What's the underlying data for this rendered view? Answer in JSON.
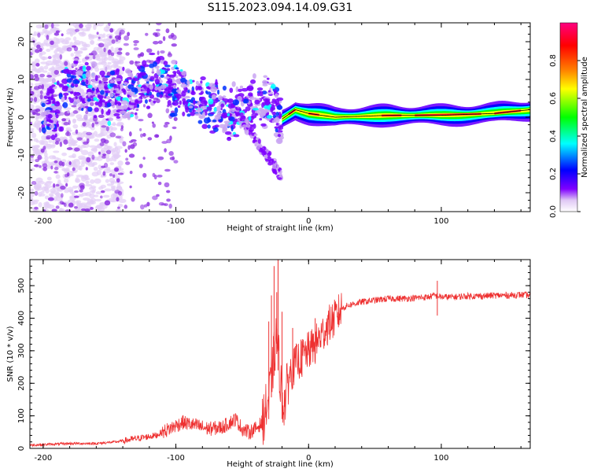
{
  "figure": {
    "title": "S115.2023.094.14.09.G31"
  },
  "chart_data": [
    {
      "type": "heatmap",
      "title": "",
      "xlabel": "Height of straight line (km)",
      "ylabel": "Frequency (Hz)",
      "xlim": [
        -210,
        167
      ],
      "ylim": [
        -25,
        25
      ],
      "xticks": [
        -200,
        -100,
        0,
        100
      ],
      "xtick_labels": [
        "-200",
        "-100",
        "0",
        "100"
      ],
      "yticks": [
        -20,
        -10,
        0,
        10,
        20
      ],
      "ytick_labels": [
        "-20",
        "-10",
        "0",
        "10",
        "20"
      ],
      "colorbar": {
        "label": "Normalized spectral amplitude",
        "range": [
          0,
          1
        ],
        "ticks": [
          0.0,
          0.2,
          0.4,
          0.6,
          0.8
        ],
        "tick_labels": [
          "0.0",
          "0.2",
          "0.4",
          "0.6",
          "0.8"
        ],
        "colormap": [
          "#ffffff",
          "#e0c8f5",
          "#8000ff",
          "#0000ff",
          "#00ffff",
          "#00ff00",
          "#ffff00",
          "#ff8000",
          "#ff0000",
          "#ff0080"
        ]
      },
      "ridge": {
        "description_points": [
          [
            -185,
            9
          ],
          [
            -140,
            5
          ],
          [
            -115,
            11
          ],
          [
            -100,
            8
          ],
          [
            -80,
            4
          ],
          [
            -60,
            1
          ],
          [
            -45,
            4
          ],
          [
            -30,
            4
          ],
          [
            -22,
            -1
          ],
          [
            -10,
            2
          ],
          [
            0,
            1
          ],
          [
            20,
            0
          ],
          [
            60,
            0.5
          ],
          [
            100,
            0.5
          ],
          [
            140,
            1
          ],
          [
            167,
            2
          ]
        ],
        "strong_band_start": -20,
        "strong_band_end": 167
      },
      "grid": false
    },
    {
      "type": "line",
      "title": "",
      "xlabel": "Height of straight line (km)",
      "ylabel": "SNR (10 * v/v)",
      "xlim": [
        -210,
        167
      ],
      "ylim": [
        0,
        580
      ],
      "xticks": [
        -200,
        -100,
        0,
        100
      ],
      "xtick_labels": [
        "-200",
        "-100",
        "0",
        "100"
      ],
      "yticks": [
        0,
        100,
        200,
        300,
        400,
        500
      ],
      "ytick_labels": [
        "0",
        "100",
        "200",
        "300",
        "400",
        "500"
      ],
      "line_color": "#ee3030",
      "x": [
        -210,
        -180,
        -160,
        -145,
        -130,
        -115,
        -105,
        -95,
        -85,
        -75,
        -65,
        -55,
        -50,
        -45,
        -40,
        -35,
        -30,
        -27,
        -24,
        -22,
        -20,
        -18,
        -15,
        -10,
        -5,
        0,
        5,
        10,
        15,
        20,
        25,
        30,
        40,
        50,
        60,
        70,
        80,
        90,
        95,
        100,
        110,
        120,
        130,
        140,
        150,
        160,
        167
      ],
      "values": [
        10,
        15,
        15,
        20,
        30,
        40,
        60,
        80,
        70,
        60,
        65,
        90,
        60,
        50,
        60,
        80,
        150,
        250,
        350,
        250,
        150,
        140,
        220,
        260,
        280,
        300,
        320,
        350,
        380,
        400,
        430,
        440,
        450,
        455,
        460,
        460,
        462,
        465,
        470,
        465,
        465,
        468,
        468,
        470,
        470,
        472,
        470
      ],
      "spike_x": [
        -30,
        -28,
        -26,
        -24,
        -23,
        -20,
        -12,
        -5,
        5,
        97
      ],
      "spike_y": [
        390,
        470,
        560,
        480,
        590,
        420,
        370,
        330,
        400,
        515
      ],
      "grid": false
    }
  ]
}
